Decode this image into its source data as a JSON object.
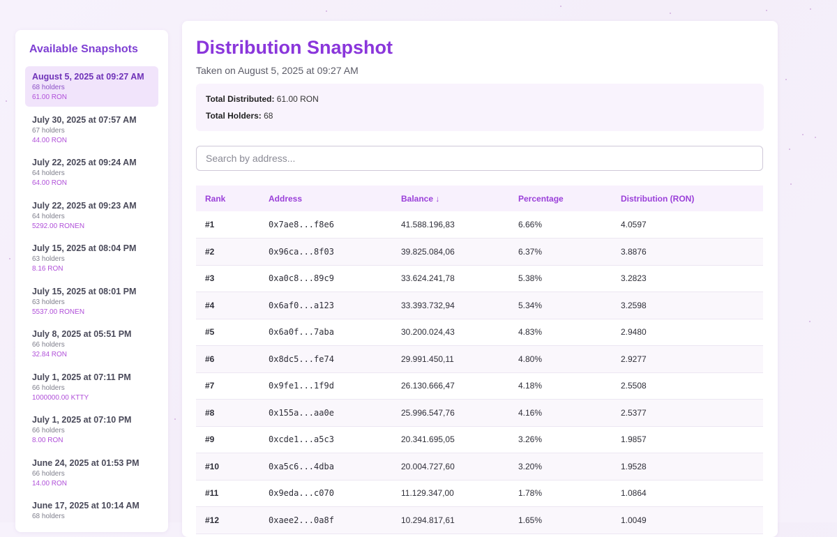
{
  "sidebar": {
    "title": "Available Snapshots",
    "items": [
      {
        "date": "August 5, 2025 at 09:27 AM",
        "holders": "68 holders",
        "amount": "61.00 RON",
        "active": true
      },
      {
        "date": "July 30, 2025 at 07:57 AM",
        "holders": "67 holders",
        "amount": "44.00 RON"
      },
      {
        "date": "July 22, 2025 at 09:24 AM",
        "holders": "64 holders",
        "amount": "64.00 RON"
      },
      {
        "date": "July 22, 2025 at 09:23 AM",
        "holders": "64 holders",
        "amount": "5292.00 RONEN"
      },
      {
        "date": "July 15, 2025 at 08:04 PM",
        "holders": "63 holders",
        "amount": "8.16 RON"
      },
      {
        "date": "July 15, 2025 at 08:01 PM",
        "holders": "63 holders",
        "amount": "5537.00 RONEN"
      },
      {
        "date": "July 8, 2025 at 05:51 PM",
        "holders": "66 holders",
        "amount": "32.84 RON"
      },
      {
        "date": "July 1, 2025 at 07:11 PM",
        "holders": "66 holders",
        "amount": "1000000.00 KTTY"
      },
      {
        "date": "July 1, 2025 at 07:10 PM",
        "holders": "66 holders",
        "amount": "8.00 RON"
      },
      {
        "date": "June 24, 2025 at 01:53 PM",
        "holders": "66 holders",
        "amount": "14.00 RON"
      },
      {
        "date": "June 17, 2025 at 10:14 AM",
        "holders": "68 holders",
        "amount": ""
      }
    ]
  },
  "main": {
    "title": "Distribution Snapshot",
    "subtitle": "Taken on August 5, 2025 at 09:27 AM",
    "summary": {
      "distributed_label": "Total Distributed:",
      "distributed_value": "61.00 RON",
      "holders_label": "Total Holders:",
      "holders_value": "68"
    },
    "search": {
      "placeholder": "Search by address..."
    },
    "table": {
      "headers": [
        "Rank",
        "Address",
        "Balance ↓",
        "Percentage",
        "Distribution (RON)"
      ],
      "rows": [
        {
          "rank": "#1",
          "address": "0x7ae8...f8e6",
          "balance": "41.588.196,83",
          "percentage": "6.66%",
          "distribution": "4.0597"
        },
        {
          "rank": "#2",
          "address": "0x96ca...8f03",
          "balance": "39.825.084,06",
          "percentage": "6.37%",
          "distribution": "3.8876"
        },
        {
          "rank": "#3",
          "address": "0xa0c8...89c9",
          "balance": "33.624.241,78",
          "percentage": "5.38%",
          "distribution": "3.2823"
        },
        {
          "rank": "#4",
          "address": "0x6af0...a123",
          "balance": "33.393.732,94",
          "percentage": "5.34%",
          "distribution": "3.2598"
        },
        {
          "rank": "#5",
          "address": "0x6a0f...7aba",
          "balance": "30.200.024,43",
          "percentage": "4.83%",
          "distribution": "2.9480"
        },
        {
          "rank": "#6",
          "address": "0x8dc5...fe74",
          "balance": "29.991.450,11",
          "percentage": "4.80%",
          "distribution": "2.9277"
        },
        {
          "rank": "#7",
          "address": "0x9fe1...1f9d",
          "balance": "26.130.666,47",
          "percentage": "4.18%",
          "distribution": "2.5508"
        },
        {
          "rank": "#8",
          "address": "0x155a...aa0e",
          "balance": "25.996.547,76",
          "percentage": "4.16%",
          "distribution": "2.5377"
        },
        {
          "rank": "#9",
          "address": "0xcde1...a5c3",
          "balance": "20.341.695,05",
          "percentage": "3.26%",
          "distribution": "1.9857"
        },
        {
          "rank": "#10",
          "address": "0xa5c6...4dba",
          "balance": "20.004.727,60",
          "percentage": "3.20%",
          "distribution": "1.9528"
        },
        {
          "rank": "#11",
          "address": "0x9eda...c070",
          "balance": "11.129.347,00",
          "percentage": "1.78%",
          "distribution": "1.0864"
        },
        {
          "rank": "#12",
          "address": "0xaee2...0a8f",
          "balance": "10.294.817,61",
          "percentage": "1.65%",
          "distribution": "1.0049"
        }
      ]
    }
  }
}
